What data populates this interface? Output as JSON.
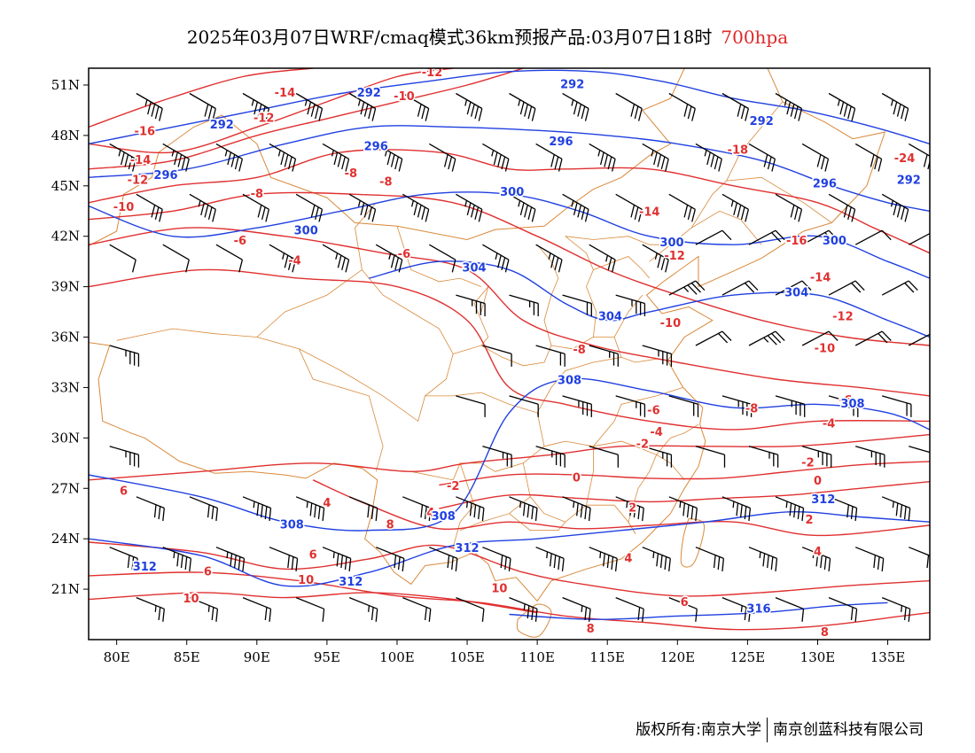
{
  "header": {
    "title": "2025年03月07日WRF/cmaq模式36km预报产品:03月07日18时",
    "level": "700hpa"
  },
  "axes": {
    "lon_ticks": [
      "80E",
      "85E",
      "90E",
      "95E",
      "100E",
      "105E",
      "110E",
      "115E",
      "120E",
      "125E",
      "130E",
      "135E"
    ],
    "lon_values": [
      80,
      85,
      90,
      95,
      100,
      105,
      110,
      115,
      120,
      125,
      130,
      135
    ],
    "lat_ticks": [
      "51N",
      "48N",
      "45N",
      "42N",
      "39N",
      "36N",
      "33N",
      "30N",
      "27N",
      "24N",
      "21N"
    ],
    "lat_values": [
      51,
      48,
      45,
      42,
      39,
      36,
      33,
      30,
      27,
      24,
      21
    ],
    "lon_range": [
      78,
      138
    ],
    "lat_range": [
      18,
      52
    ]
  },
  "colors": {
    "temperature": "#e03030",
    "height": "#2040e0",
    "boundary": "#d9893a",
    "wind": "#000000"
  },
  "temperature_contours": [
    {
      "value": -16,
      "label": "-16",
      "points": [
        [
          78,
          48.5
        ],
        [
          83,
          50
        ],
        [
          89,
          51.5
        ],
        [
          94,
          52
        ]
      ]
    },
    {
      "value": -14,
      "label": "-14",
      "points": [
        [
          78,
          47.5
        ],
        [
          84,
          47
        ],
        [
          90,
          48.5
        ],
        [
          95,
          50
        ],
        [
          100,
          51.5
        ],
        [
          104,
          52
        ]
      ]
    },
    {
      "value": -12,
      "label": "-12",
      "points": [
        [
          78,
          46
        ],
        [
          84,
          46.5
        ],
        [
          90,
          48
        ],
        [
          95,
          49
        ],
        [
          100,
          50
        ],
        [
          105,
          51
        ],
        [
          109,
          52
        ]
      ]
    },
    {
      "value": -10,
      "label": "-10",
      "points": [
        [
          78,
          44
        ],
        [
          84,
          45
        ],
        [
          90,
          45.5
        ],
        [
          96,
          47
        ],
        [
          103,
          47
        ],
        [
          108,
          46
        ],
        [
          112,
          46
        ],
        [
          118,
          46
        ],
        [
          124,
          45
        ],
        [
          130,
          44
        ],
        [
          134,
          42.5
        ],
        [
          138,
          41
        ]
      ]
    },
    {
      "value": -8,
      "label": "-8",
      "points": [
        [
          78,
          43
        ],
        [
          84,
          43.5
        ],
        [
          90,
          44.5
        ],
        [
          97,
          44.5
        ],
        [
          104,
          44
        ],
        [
          110,
          42
        ],
        [
          115,
          40
        ],
        [
          120,
          38.5
        ],
        [
          126,
          37
        ],
        [
          132,
          36
        ],
        [
          138,
          35.5
        ]
      ]
    },
    {
      "value": -6,
      "label": "-6",
      "points": [
        [
          78,
          41.5
        ],
        [
          85,
          42.5
        ],
        [
          92,
          42
        ],
        [
          99,
          41
        ],
        [
          105,
          40
        ],
        [
          109,
          37
        ],
        [
          114,
          35.5
        ],
        [
          120,
          34.5
        ],
        [
          127,
          33.5
        ],
        [
          133,
          33
        ],
        [
          138,
          32.5
        ]
      ]
    },
    {
      "value": -4,
      "label": "-4",
      "points": [
        [
          78,
          39
        ],
        [
          86,
          40
        ],
        [
          93,
          39.5
        ],
        [
          100,
          39
        ],
        [
          105,
          37
        ],
        [
          108,
          33
        ],
        [
          112,
          32
        ],
        [
          118,
          31
        ],
        [
          124,
          30.5
        ],
        [
          130,
          31
        ],
        [
          138,
          31
        ]
      ]
    },
    {
      "value": -2,
      "label": "-2",
      "points": [
        [
          78,
          27.5
        ],
        [
          86,
          28
        ],
        [
          94,
          28.5
        ],
        [
          101,
          28
        ],
        [
          105,
          28.5
        ],
        [
          111,
          29
        ],
        [
          116,
          29.5
        ],
        [
          122,
          29.5
        ],
        [
          128,
          29.5
        ],
        [
          133,
          29.8
        ],
        [
          138,
          30.2
        ]
      ]
    },
    {
      "value": 0,
      "label": "0",
      "points": [
        [
          103,
          27.2
        ],
        [
          108,
          27.8
        ],
        [
          113,
          27.8
        ],
        [
          118,
          27.6
        ],
        [
          123,
          27.6
        ],
        [
          128,
          28
        ],
        [
          133,
          28.4
        ],
        [
          138,
          28.6
        ]
      ]
    },
    {
      "value": 2,
      "label": "2",
      "points": [
        [
          103,
          25.8
        ],
        [
          108,
          26.6
        ],
        [
          113,
          26.4
        ],
        [
          118,
          26.2
        ],
        [
          123,
          26.4
        ],
        [
          128,
          26.6
        ],
        [
          133,
          27
        ],
        [
          138,
          27.4
        ]
      ]
    },
    {
      "value": 4,
      "label": "4",
      "points": [
        [
          94,
          27.5
        ],
        [
          98,
          26
        ],
        [
          103,
          24.6
        ],
        [
          108,
          25
        ],
        [
          113,
          24.6
        ],
        [
          118,
          24.8
        ],
        [
          124,
          25
        ],
        [
          130,
          24.2
        ],
        [
          138,
          24.8
        ]
      ]
    },
    {
      "value": 6,
      "label": "6",
      "points": [
        [
          78,
          23.8
        ],
        [
          86,
          23.2
        ],
        [
          92,
          22.2
        ],
        [
          98,
          22.8
        ],
        [
          103,
          23.6
        ],
        [
          109,
          22
        ],
        [
          114,
          21.2
        ],
        [
          120,
          20.6
        ],
        [
          126,
          20.8
        ],
        [
          132,
          21.2
        ],
        [
          138,
          21.5
        ]
      ]
    },
    {
      "value": 8,
      "label": "8",
      "points": [
        [
          78,
          21.8
        ],
        [
          86,
          22
        ],
        [
          93,
          21.5
        ],
        [
          100,
          20.6
        ],
        [
          106,
          20.2
        ],
        [
          112,
          19.4
        ],
        [
          118,
          19
        ],
        [
          124,
          18.6
        ],
        [
          130,
          18.8
        ],
        [
          136,
          19.4
        ],
        [
          138,
          19.6
        ]
      ]
    },
    {
      "value": 10,
      "label": "10",
      "points": [
        [
          78,
          20.4
        ],
        [
          86,
          20.8
        ],
        [
          92,
          20.5
        ],
        [
          98,
          20.8
        ],
        [
          104,
          20.4
        ],
        [
          110,
          19.6
        ]
      ]
    }
  ],
  "height_contours": [
    {
      "value": 292,
      "label": "292",
      "points": [
        [
          78,
          47.5
        ],
        [
          84,
          48.5
        ],
        [
          90,
          49.5
        ],
        [
          96,
          50.5
        ],
        [
          102,
          51.2
        ],
        [
          108,
          51.8
        ],
        [
          114,
          51.8
        ],
        [
          119,
          51.2
        ],
        [
          124,
          50.2
        ],
        [
          129,
          49.5
        ],
        [
          134,
          48.5
        ],
        [
          138,
          47.5
        ]
      ]
    },
    {
      "value": 296,
      "label": "296",
      "points": [
        [
          78,
          45.5
        ],
        [
          85,
          46
        ],
        [
          92,
          47.5
        ],
        [
          98,
          48.5
        ],
        [
          104,
          48.5
        ],
        [
          110,
          48.3
        ],
        [
          115,
          48
        ],
        [
          120,
          47.5
        ],
        [
          126,
          46.5
        ],
        [
          131,
          45
        ],
        [
          135,
          44
        ],
        [
          138,
          43.5
        ]
      ]
    },
    {
      "value": 300,
      "label": "300",
      "points": [
        [
          78,
          43.8
        ],
        [
          84,
          42
        ],
        [
          90,
          42.5
        ],
        [
          96,
          43.5
        ],
        [
          102,
          44.5
        ],
        [
          108,
          44.5
        ],
        [
          113,
          43.5
        ],
        [
          118,
          42
        ],
        [
          124,
          41.5
        ],
        [
          130,
          42
        ],
        [
          135,
          40.5
        ],
        [
          138,
          39.5
        ]
      ]
    },
    {
      "value": 304,
      "label": "304",
      "points": [
        [
          98,
          39.5
        ],
        [
          103,
          40.5
        ],
        [
          108,
          40
        ],
        [
          112,
          38
        ],
        [
          115,
          37
        ],
        [
          118,
          37.5
        ],
        [
          124,
          38.5
        ],
        [
          130,
          38.5
        ],
        [
          135,
          37
        ],
        [
          138,
          36
        ]
      ]
    },
    {
      "value": 308,
      "label": "308",
      "points": [
        [
          78,
          27.8
        ],
        [
          86,
          26.5
        ],
        [
          92,
          25
        ],
        [
          98,
          24.5
        ],
        [
          104,
          25.5
        ],
        [
          108,
          31.5
        ],
        [
          112,
          33.5
        ],
        [
          118,
          32.8
        ],
        [
          124,
          31.8
        ],
        [
          130,
          32
        ],
        [
          135,
          31.5
        ],
        [
          138,
          30.5
        ]
      ]
    },
    {
      "value": 312,
      "label": "312",
      "points": [
        [
          78,
          24
        ],
        [
          86,
          23
        ],
        [
          92,
          21.2
        ],
        [
          98,
          22
        ],
        [
          104,
          23.6
        ],
        [
          110,
          24
        ],
        [
          116,
          24.5
        ],
        [
          122,
          25
        ],
        [
          128,
          25.6
        ],
        [
          133,
          25.3
        ],
        [
          138,
          25
        ]
      ]
    },
    {
      "value": 316,
      "label": "316",
      "points": [
        [
          108,
          19.5
        ],
        [
          114,
          19.2
        ],
        [
          120,
          19.4
        ],
        [
          126,
          19.6
        ],
        [
          131,
          20
        ],
        [
          135,
          20.2
        ]
      ]
    }
  ],
  "temperature_labels": [
    {
      "text": "-12",
      "lon": 102.5,
      "lat": 51.7
    },
    {
      "text": "-14",
      "lon": 92,
      "lat": 50.5
    },
    {
      "text": "-10",
      "lon": 100.5,
      "lat": 50.3
    },
    {
      "text": "-12",
      "lon": 90.5,
      "lat": 49
    },
    {
      "text": "-16",
      "lon": 82,
      "lat": 48.2
    },
    {
      "text": "-14",
      "lon": 81.7,
      "lat": 46.5
    },
    {
      "text": "-12",
      "lon": 81.5,
      "lat": 45.3
    },
    {
      "text": "-10",
      "lon": 80.5,
      "lat": 43.7
    },
    {
      "text": "-8",
      "lon": 90,
      "lat": 44.5
    },
    {
      "text": "-8",
      "lon": 96.7,
      "lat": 45.7
    },
    {
      "text": "-8",
      "lon": 99.2,
      "lat": 45.2
    },
    {
      "text": "-6",
      "lon": 88.8,
      "lat": 41.7
    },
    {
      "text": "-4",
      "lon": 92.7,
      "lat": 40.5
    },
    {
      "text": "-6",
      "lon": 100.5,
      "lat": 40.9
    },
    {
      "text": "-18",
      "lon": 124.3,
      "lat": 47.1
    },
    {
      "text": "-24",
      "lon": 136.2,
      "lat": 46.6
    },
    {
      "text": "-14",
      "lon": 118,
      "lat": 43.4
    },
    {
      "text": "-16",
      "lon": 128.5,
      "lat": 41.7
    },
    {
      "text": "-12",
      "lon": 119.8,
      "lat": 40.8
    },
    {
      "text": "-14",
      "lon": 130.2,
      "lat": 39.5
    },
    {
      "text": "-12",
      "lon": 131.8,
      "lat": 37.2
    },
    {
      "text": "-10",
      "lon": 119.5,
      "lat": 36.8
    },
    {
      "text": "-10",
      "lon": 130.5,
      "lat": 35.3
    },
    {
      "text": "-8",
      "lon": 113,
      "lat": 35.2
    },
    {
      "text": "-6",
      "lon": 118.3,
      "lat": 31.6
    },
    {
      "text": "-8",
      "lon": 125.3,
      "lat": 31.7
    },
    {
      "text": "-6",
      "lon": 132,
      "lat": 32.2
    },
    {
      "text": "-4",
      "lon": 130.8,
      "lat": 30.8
    },
    {
      "text": "-4",
      "lon": 118.5,
      "lat": 30.3
    },
    {
      "text": "-2",
      "lon": 117.5,
      "lat": 29.6
    },
    {
      "text": "-2",
      "lon": 129.3,
      "lat": 28.5
    },
    {
      "text": "0",
      "lon": 130,
      "lat": 27.4
    },
    {
      "text": "0",
      "lon": 112.8,
      "lat": 27.6
    },
    {
      "text": "-2",
      "lon": 104,
      "lat": 27.1
    },
    {
      "text": "2",
      "lon": 116.8,
      "lat": 25.8
    },
    {
      "text": "2",
      "lon": 129.4,
      "lat": 25.1
    },
    {
      "text": "4",
      "lon": 95,
      "lat": 26.1
    },
    {
      "text": "4",
      "lon": 102.4,
      "lat": 25.5
    },
    {
      "text": "6",
      "lon": 80.5,
      "lat": 26.8
    },
    {
      "text": "8",
      "lon": 99.5,
      "lat": 24.8
    },
    {
      "text": "6",
      "lon": 94,
      "lat": 23
    },
    {
      "text": "4",
      "lon": 116.5,
      "lat": 22.8
    },
    {
      "text": "4",
      "lon": 130,
      "lat": 23.2
    },
    {
      "text": "6",
      "lon": 86.5,
      "lat": 22
    },
    {
      "text": "10",
      "lon": 85.3,
      "lat": 20.4
    },
    {
      "text": "10",
      "lon": 93.5,
      "lat": 21.5
    },
    {
      "text": "10",
      "lon": 107.3,
      "lat": 21
    },
    {
      "text": "6",
      "lon": 120.5,
      "lat": 20.2
    },
    {
      "text": "8",
      "lon": 113.8,
      "lat": 18.6
    },
    {
      "text": "8",
      "lon": 130.5,
      "lat": 18.4
    }
  ],
  "height_labels": [
    {
      "text": "292",
      "lon": 98,
      "lat": 50.5
    },
    {
      "text": "292",
      "lon": 112.5,
      "lat": 51
    },
    {
      "text": "292",
      "lon": 87.5,
      "lat": 48.6
    },
    {
      "text": "292",
      "lon": 126,
      "lat": 48.8
    },
    {
      "text": "296",
      "lon": 98.5,
      "lat": 47.3
    },
    {
      "text": "296",
      "lon": 111.7,
      "lat": 47.6
    },
    {
      "text": "296",
      "lon": 83.5,
      "lat": 45.6
    },
    {
      "text": "296",
      "lon": 130.5,
      "lat": 45.1
    },
    {
      "text": "292",
      "lon": 136.5,
      "lat": 45.3
    },
    {
      "text": "300",
      "lon": 108.2,
      "lat": 44.6
    },
    {
      "text": "300",
      "lon": 93.5,
      "lat": 42.3
    },
    {
      "text": "300",
      "lon": 119.6,
      "lat": 41.6
    },
    {
      "text": "300",
      "lon": 131.2,
      "lat": 41.7
    },
    {
      "text": "304",
      "lon": 105.5,
      "lat": 40.1
    },
    {
      "text": "304",
      "lon": 128.5,
      "lat": 38.6
    },
    {
      "text": "304",
      "lon": 115.2,
      "lat": 37.2
    },
    {
      "text": "308",
      "lon": 112.3,
      "lat": 33.4
    },
    {
      "text": "308",
      "lon": 132.5,
      "lat": 32
    },
    {
      "text": "308",
      "lon": 92.5,
      "lat": 24.8
    },
    {
      "text": "308",
      "lon": 103.3,
      "lat": 25.3
    },
    {
      "text": "312",
      "lon": 130.4,
      "lat": 26.3
    },
    {
      "text": "312",
      "lon": 105,
      "lat": 23.4
    },
    {
      "text": "312",
      "lon": 82,
      "lat": 22.3
    },
    {
      "text": "312",
      "lon": 96.7,
      "lat": 21.4
    },
    {
      "text": "316",
      "lon": 125.8,
      "lat": 19.8
    }
  ]
}
